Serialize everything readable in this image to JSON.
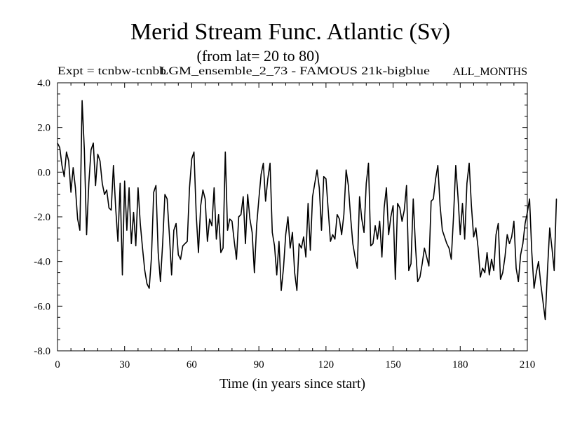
{
  "chart_data": {
    "type": "line",
    "title": "Merid Stream Func. Atlantic (Sv)",
    "subtitle": "(from lat= 20 to 80)",
    "annotations": {
      "expt": "Expt = tcnbw-tcnbb",
      "model": "LGM_ensemble_2_73 - FAMOUS 21k-bigblue",
      "season": "ALL_MONTHS"
    },
    "xlabel": "Time (in years since start)",
    "ylabel": "",
    "xlim": [
      0,
      210
    ],
    "ylim": [
      -8.0,
      4.0
    ],
    "xticks": [
      0,
      30,
      60,
      90,
      120,
      150,
      180,
      210
    ],
    "xtick_labels": [
      "0",
      "30",
      "60",
      "90",
      "120",
      "150",
      "180",
      "210"
    ],
    "yticks": [
      -8.0,
      -6.0,
      -4.0,
      -2.0,
      0.0,
      2.0,
      4.0
    ],
    "ytick_labels": [
      "-8.0",
      "-6.0",
      "-4.0",
      "-2.0",
      "0.0",
      "2.0",
      "4.0"
    ],
    "grid": false,
    "series": [
      {
        "name": "Merid Stream Func. Atlantic",
        "x_start": 0,
        "x_step": 1,
        "values": [
          1.3,
          1.1,
          0.3,
          -0.2,
          0.9,
          0.5,
          -0.9,
          0.2,
          -0.7,
          -2.1,
          -2.6,
          3.2,
          1.0,
          -2.8,
          -0.5,
          1.0,
          1.3,
          -0.6,
          0.8,
          0.5,
          -0.5,
          -1.0,
          -0.8,
          -1.6,
          -1.7,
          0.3,
          -1.6,
          -3.1,
          -0.5,
          -4.6,
          -0.4,
          -2.6,
          -0.7,
          -3.2,
          -1.8,
          -3.3,
          -0.7,
          -2.3,
          -3.4,
          -4.4,
          -5.0,
          -5.2,
          -3.8,
          -0.9,
          -0.6,
          -3.6,
          -4.9,
          -3.2,
          -1.0,
          -1.2,
          -2.8,
          -4.6,
          -2.6,
          -2.3,
          -3.7,
          -3.9,
          -3.3,
          -3.2,
          -3.1,
          -0.7,
          0.6,
          0.9,
          -1.9,
          -3.6,
          -1.5,
          -0.8,
          -1.2,
          -3.1,
          -2.1,
          -2.4,
          -0.7,
          -3.0,
          -1.9,
          -3.6,
          -3.4,
          0.9,
          -2.6,
          -2.1,
          -2.2,
          -3.1,
          -3.9,
          -2.0,
          -1.9,
          -1.1,
          -3.2,
          -1.0,
          -2.1,
          -2.7,
          -4.5,
          -2.4,
          -1.2,
          -0.1,
          0.4,
          -1.3,
          -0.3,
          0.4,
          -2.7,
          -3.3,
          -4.6,
          -3.1,
          -5.3,
          -4.3,
          -2.8,
          -2.0,
          -3.4,
          -2.7,
          -4.5,
          -5.3,
          -3.2,
          -3.4,
          -2.9,
          -3.8,
          -1.4,
          -3.5,
          -1.1,
          -0.5,
          0.1,
          -0.7,
          -2.6,
          -0.2,
          -0.3,
          -1.7,
          -3.1,
          -2.8,
          -3.0,
          -1.9,
          -2.1,
          -2.8,
          -1.9,
          0.1,
          -0.6,
          -2.0,
          -3.2,
          -3.8,
          -4.3,
          -1.1,
          -2.1,
          -2.7,
          -0.5,
          0.4,
          -3.3,
          -3.2,
          -2.4,
          -3.0,
          -2.2,
          -3.8,
          -1.6,
          -0.7,
          -2.8,
          -2.0,
          -1.5,
          -4.8,
          -1.4,
          -1.6,
          -2.2,
          -1.7,
          -0.6,
          -4.4,
          -4.1,
          -1.2,
          -3.3,
          -4.9,
          -4.7,
          -4.1,
          -3.4,
          -3.8,
          -4.2,
          -1.3,
          -1.2,
          -0.3,
          0.3,
          -1.5,
          -2.6,
          -2.9,
          -3.2,
          -3.4,
          -3.9,
          -2.0,
          0.3,
          -1.1,
          -2.8,
          -1.4,
          -3.0,
          -0.5,
          0.4,
          -1.5,
          -2.9,
          -2.5,
          -3.4,
          -4.7,
          -4.3,
          -4.5,
          -3.6,
          -4.6,
          -3.9,
          -4.4,
          -2.8,
          -2.3,
          -4.8,
          -4.5,
          -3.8,
          -2.8,
          -3.2,
          -2.9,
          -2.2,
          -4.3,
          -4.9,
          -3.7,
          -3.2,
          -2.3,
          -1.8,
          -1.2,
          -3.6,
          -5.2,
          -4.5,
          -4.0,
          -5.0,
          -5.8,
          -6.6,
          -4.4,
          -2.5,
          -3.4,
          -4.4,
          -1.2
        ],
        "color": "#000000"
      }
    ]
  }
}
